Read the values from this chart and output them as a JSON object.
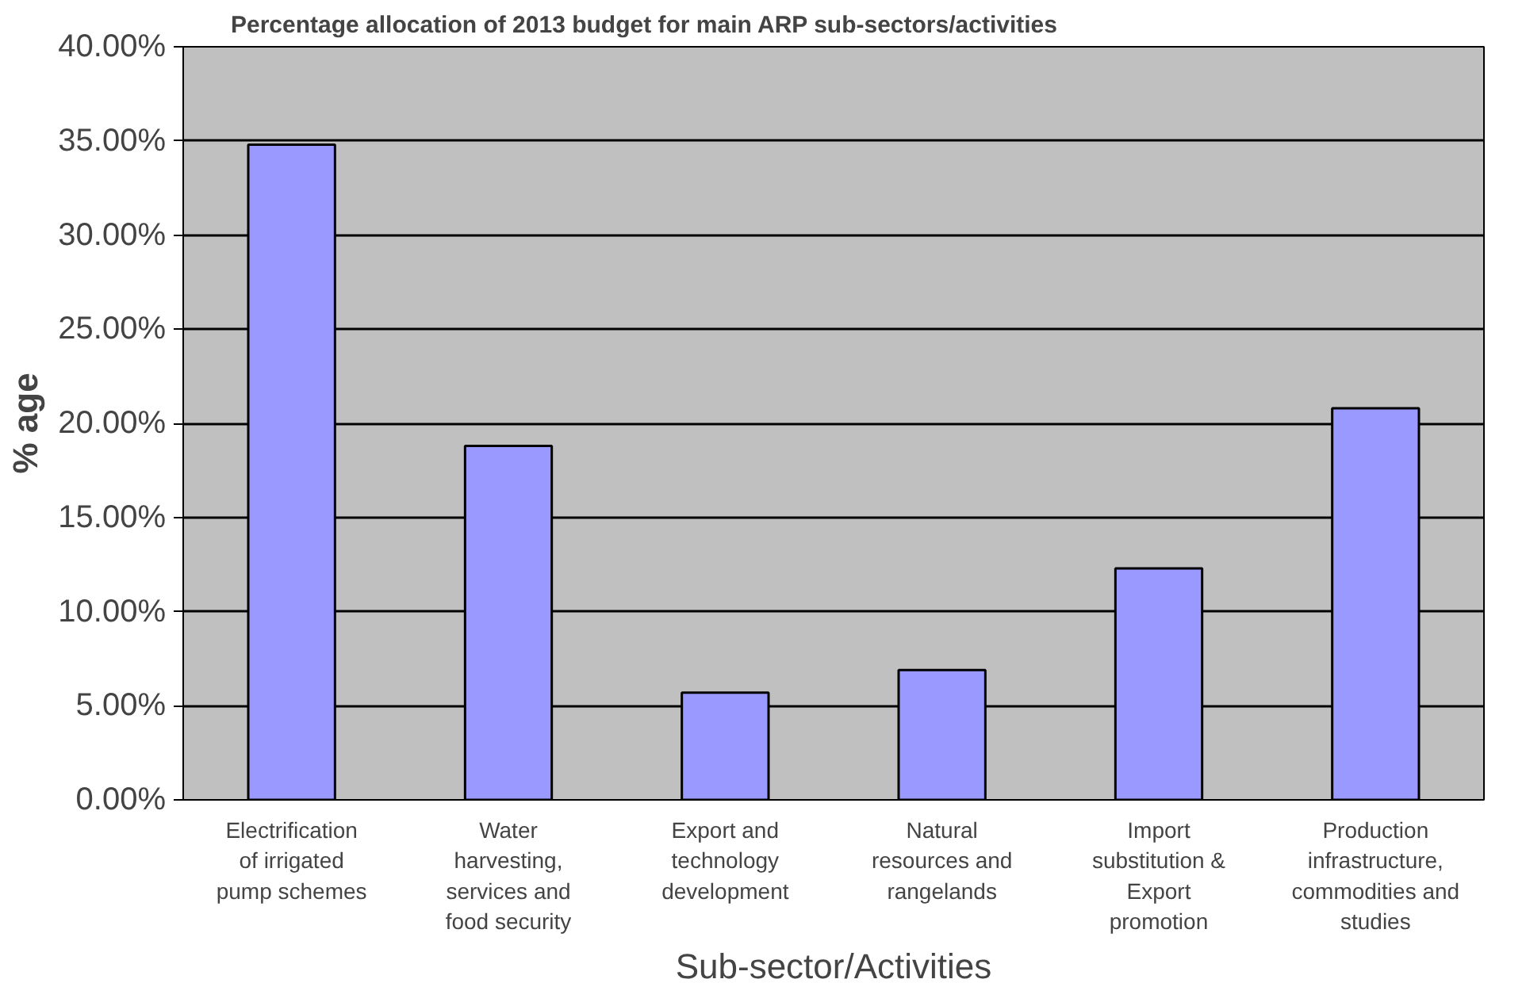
{
  "chart_data": {
    "type": "bar",
    "title": "Percentage allocation of 2013 budget for main ARP sub-sectors/activities",
    "xlabel": "Sub-sector/Activities",
    "ylabel": "% age",
    "categories": [
      "Electrification of irrigated pump schemes",
      "Water harvesting, services and food security",
      "Export and technology development",
      "Natural resources and rangelands",
      "Import substitution & Export promotion",
      "Production infrastructure, commodities and studies"
    ],
    "values": [
      34.8,
      18.8,
      5.7,
      6.9,
      12.3,
      20.8
    ],
    "color": "#9999ff",
    "ylim": [
      0,
      40
    ],
    "yticks": [
      {
        "value": 0,
        "label": "0.00%"
      },
      {
        "value": 5,
        "label": "5.00%"
      },
      {
        "value": 10,
        "label": "10.00%"
      },
      {
        "value": 15,
        "label": "15.00%"
      },
      {
        "value": 20,
        "label": "20.00%"
      },
      {
        "value": 25,
        "label": "25.00%"
      },
      {
        "value": 30,
        "label": "30.00%"
      },
      {
        "value": 35,
        "label": "35.00%"
      },
      {
        "value": 40,
        "label": "40.00%"
      }
    ],
    "grid": "y"
  }
}
